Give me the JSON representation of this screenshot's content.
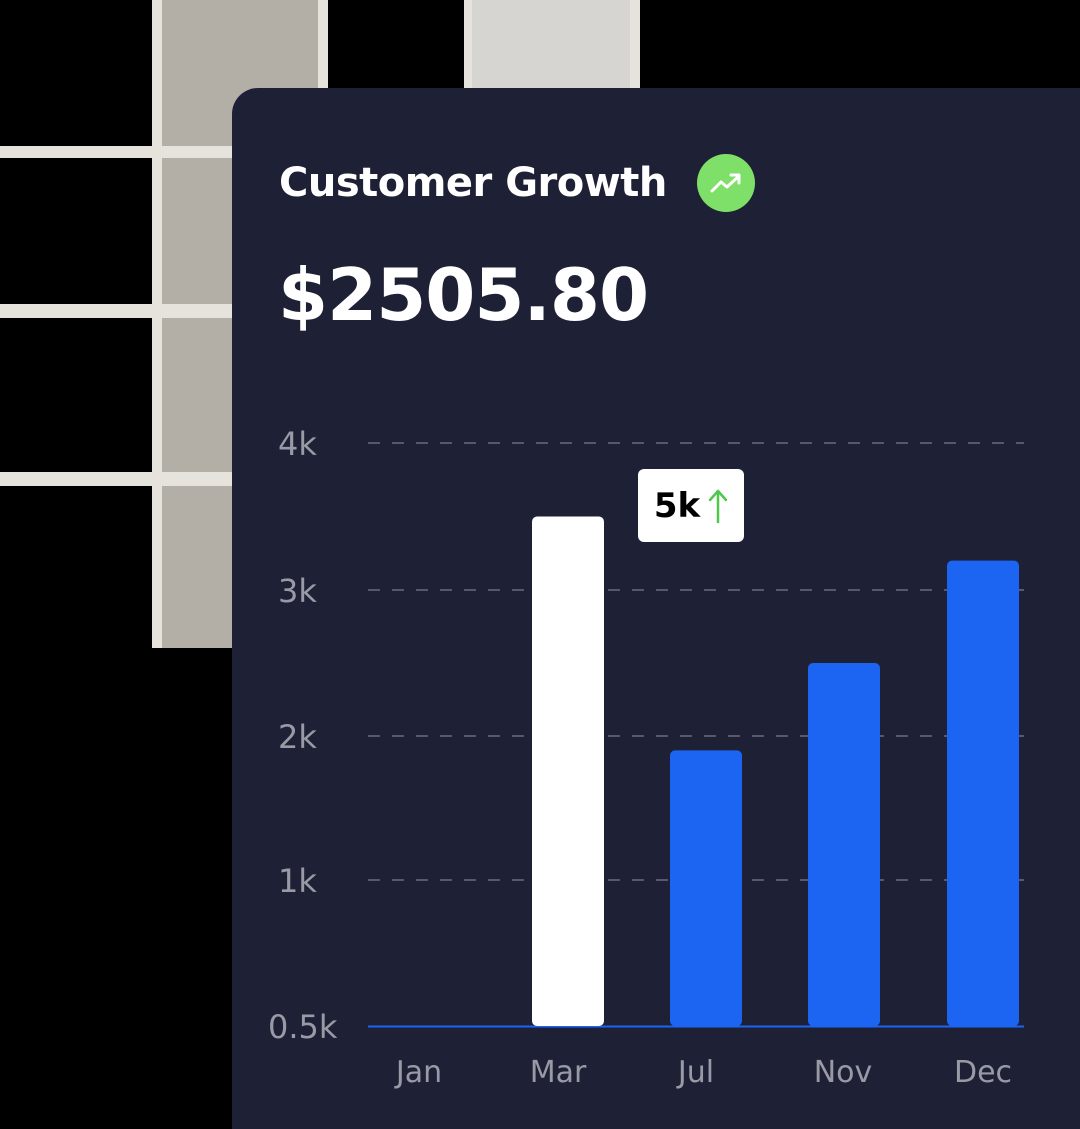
{
  "card": {
    "title": "Customer Growth",
    "amount": "$2505.80"
  },
  "icons": {
    "trend": "trending-up-icon",
    "tooltip_arrow": "arrow-up-icon"
  },
  "colors": {
    "card_bg": "#1e2035",
    "badge_green": "#7ee068",
    "bar_blue": "#1c64f2",
    "bar_highlight": "#ffffff",
    "arrow_green": "#4cc94c"
  },
  "chart_data": {
    "type": "bar",
    "categories": [
      "Jan",
      "Mar",
      "Jul",
      "Nov",
      "Dec"
    ],
    "values": [
      0.5,
      3.5,
      1.9,
      2.5,
      3.2
    ],
    "y_ticks": [
      {
        "value": 4,
        "label": "4k"
      },
      {
        "value": 3,
        "label": "3k"
      },
      {
        "value": 2,
        "label": "2k"
      },
      {
        "value": 1,
        "label": "1k"
      },
      {
        "value": 0.5,
        "label": "0.5k"
      }
    ],
    "ylim": [
      0.5,
      4
    ],
    "highlighted_index": 1,
    "grid": true,
    "annotation": {
      "label": "5k",
      "direction": "up"
    }
  }
}
